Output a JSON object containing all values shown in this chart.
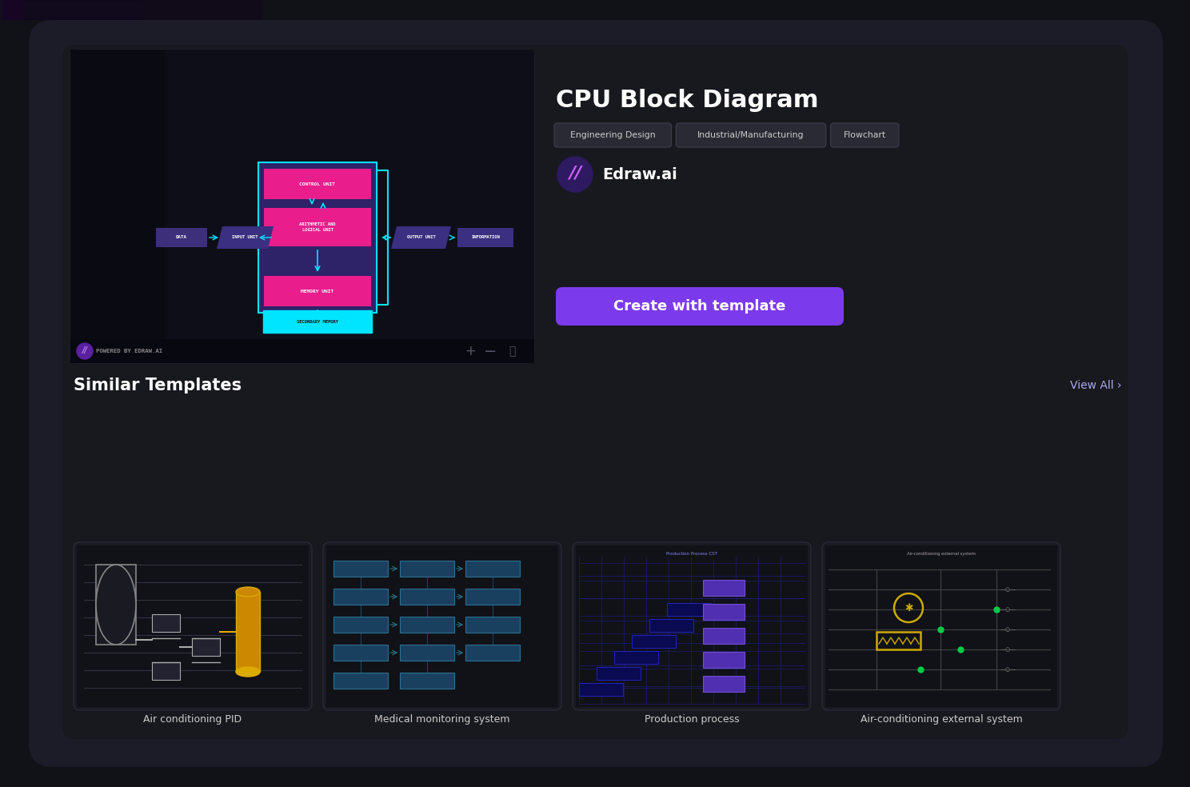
{
  "bg_outer": "#111118",
  "bg_device": "#1c1c28",
  "bg_card_inner": "#18181f",
  "bg_preview": "#111118",
  "bg_sidebar": "#0a0a12",
  "bg_diagram": "#0e0e18",
  "bg_botbar": "#080810",
  "title": "CPU Block Diagram",
  "tags": [
    "Engineering Design",
    "Industrial/Manufacturing",
    "Flowchart"
  ],
  "author": "Edraw.ai",
  "button_text": "Create with template",
  "button_color": "#7c3aed",
  "similar_title": "Similar Templates",
  "view_all": "View All ›",
  "title_color": "#ffffff",
  "tag_bg": "#2a2a35",
  "tag_border": "#3a3a48",
  "tag_text": "#cccccc",
  "powered_text": "POWERED BY EDRAW.AI",
  "powered_color": "#888888",
  "cpu_group_fill": "#2e2268",
  "cpu_group_border": "#00e5ff",
  "pink_block": "#e91e8c",
  "cyan_color": "#00e5ff",
  "purple_dark": "#3d2f7a",
  "purple_mid": "#3a2f80",
  "secondary_mem_fill": "#00e5ff",
  "secondary_mem_text": "#111111",
  "arrow_color": "#00e5ff",
  "card_bg": "#1a1a22",
  "card_border": "#2a2a35",
  "thumb_bgs": [
    "#111118",
    "#111118",
    "#111118",
    "#111118"
  ],
  "card_labels": [
    "Air conditioning PID",
    "Medical monitoring system",
    "Production process",
    "Air-conditioning external system"
  ],
  "grad_purple": "#6600cc",
  "grad_end": "#0a0a12"
}
